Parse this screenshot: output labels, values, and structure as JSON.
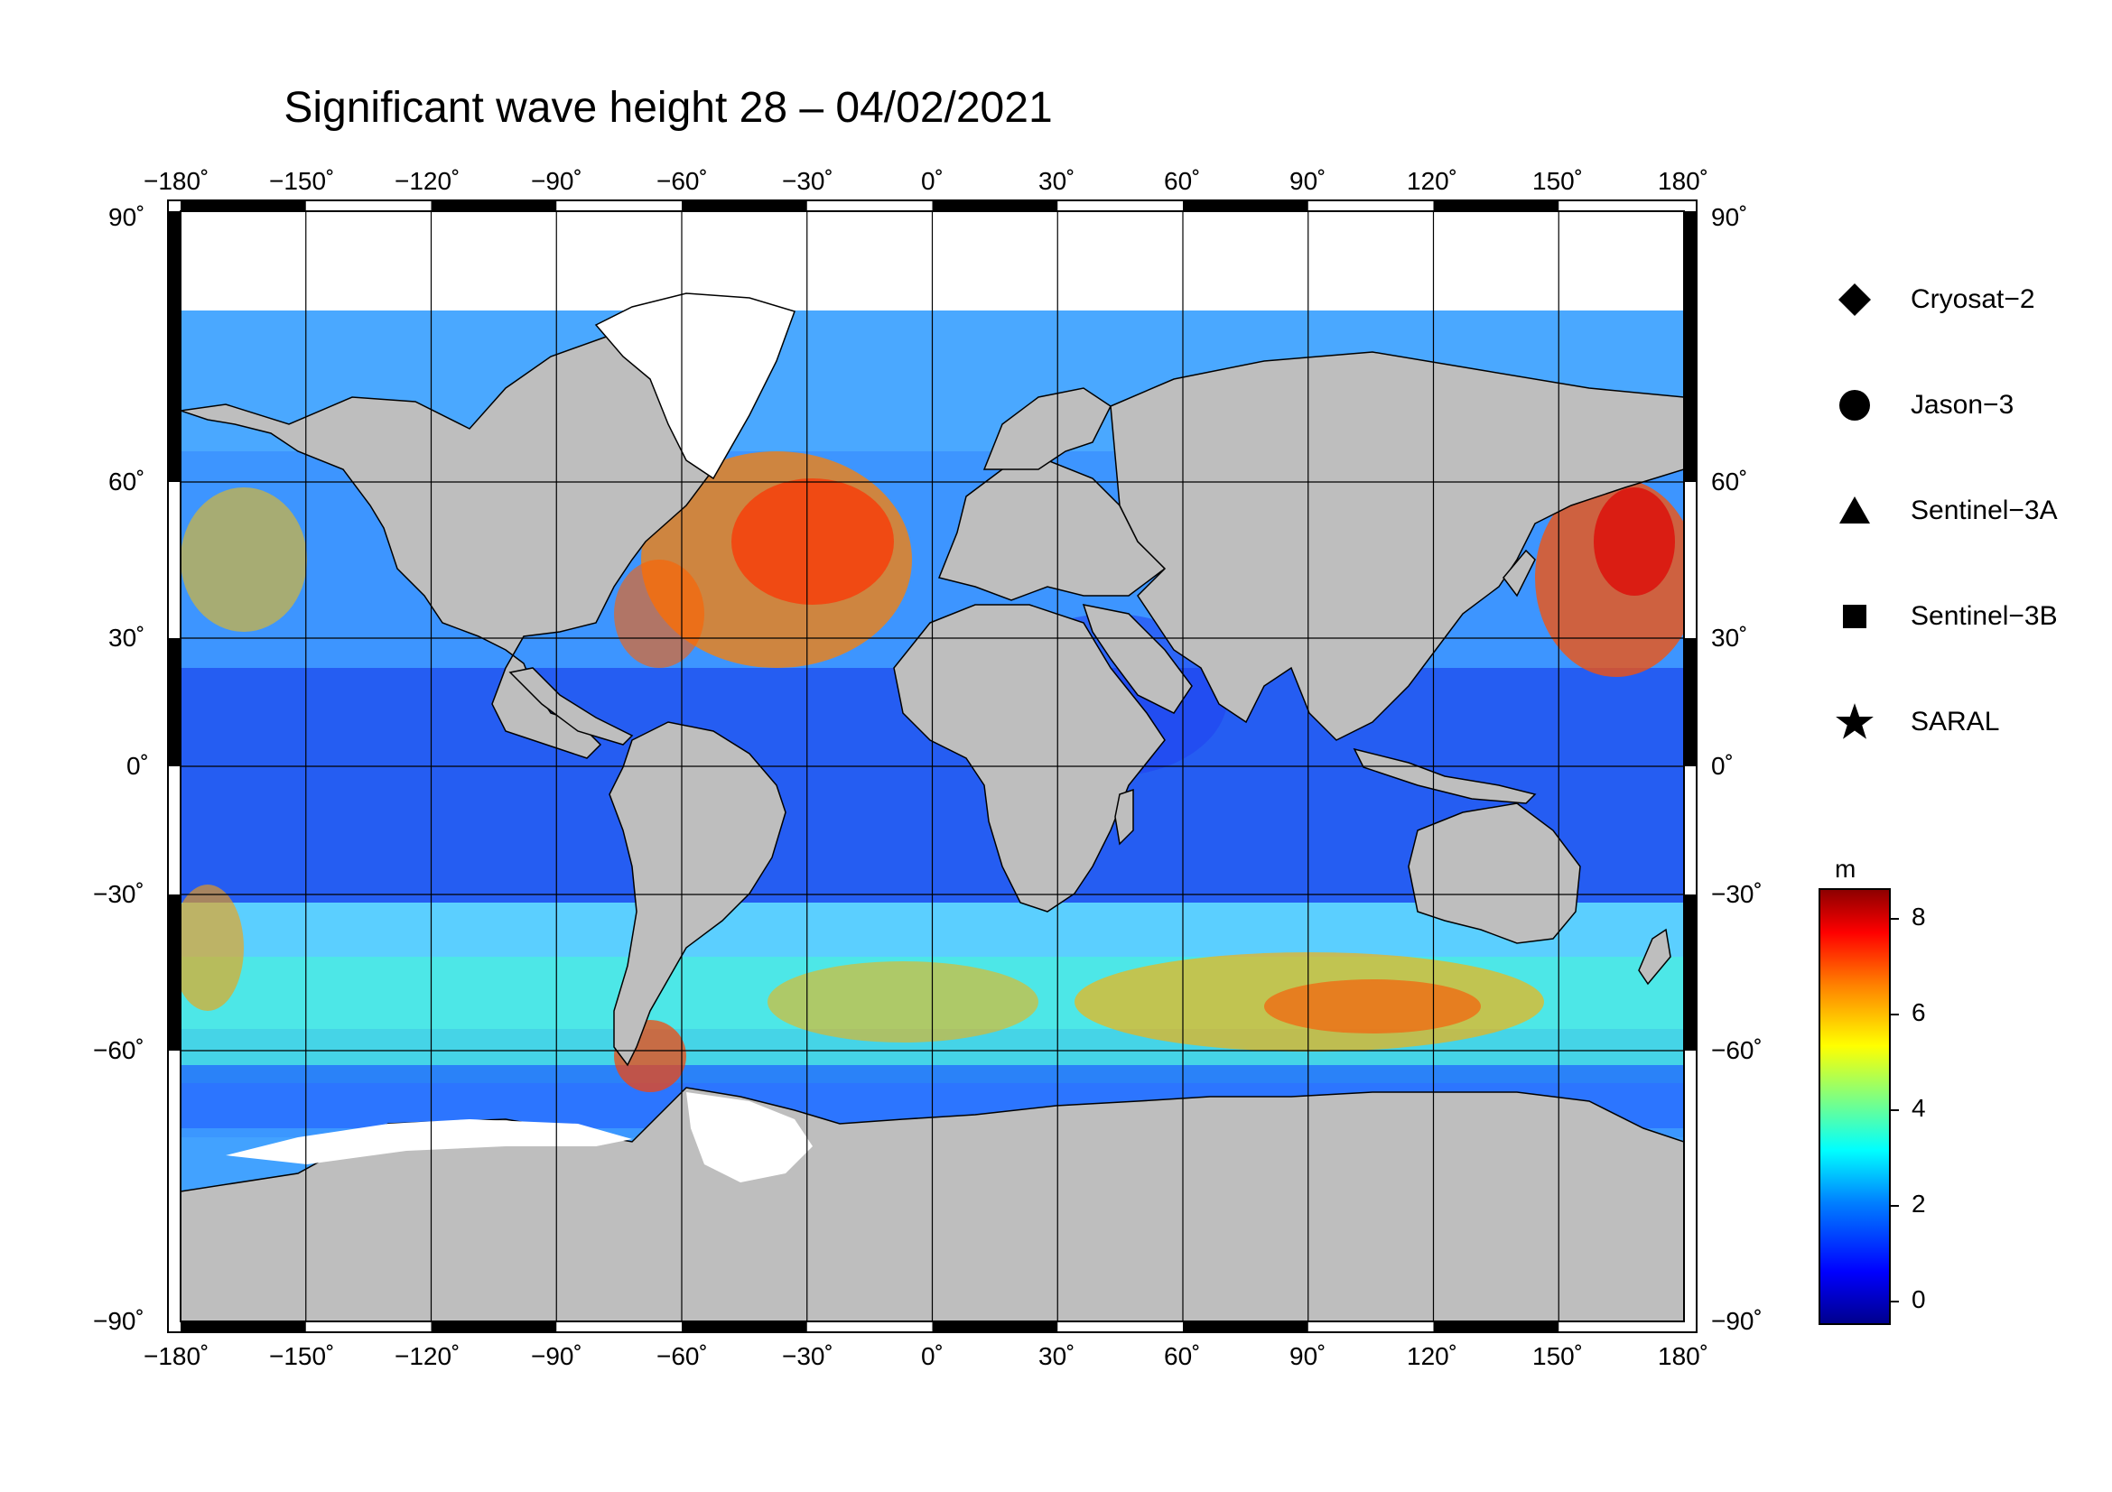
{
  "title": "Significant wave height 28 – 04/02/2021",
  "map": {
    "projection": "equirectangular",
    "lon_range": [
      -180,
      180
    ],
    "lat_range": [
      -90,
      90
    ],
    "lon_ticks": [
      "−180˚",
      "−150˚",
      "−120˚",
      "−90˚",
      "−60˚",
      "−30˚",
      "0˚",
      "30˚",
      "60˚",
      "90˚",
      "120˚",
      "150˚",
      "180˚"
    ],
    "lat_ticks": [
      "90˚",
      "60˚",
      "30˚",
      "0˚",
      "−30˚",
      "−60˚",
      "−90˚"
    ],
    "land_color": "#bebebe",
    "ice_color": "#ffffff"
  },
  "legend": {
    "items": [
      {
        "label": "Cryosat−2",
        "icon": "diamond-icon"
      },
      {
        "label": "Jason−3",
        "icon": "circle-icon"
      },
      {
        "label": "Sentinel−3A",
        "icon": "triangle-icon"
      },
      {
        "label": "Sentinel−3B",
        "icon": "square-icon"
      },
      {
        "label": "SARAL",
        "icon": "star-icon"
      }
    ]
  },
  "colorbar": {
    "unit": "m",
    "ticks": [
      "8",
      "6",
      "4",
      "2",
      "0"
    ],
    "range": [
      -0.5,
      8.5
    ],
    "colormap": [
      "#00008b",
      "#0000ff",
      "#0080ff",
      "#00ffff",
      "#80ff80",
      "#ffff00",
      "#ff8000",
      "#ff0000",
      "#8b0000"
    ]
  }
}
